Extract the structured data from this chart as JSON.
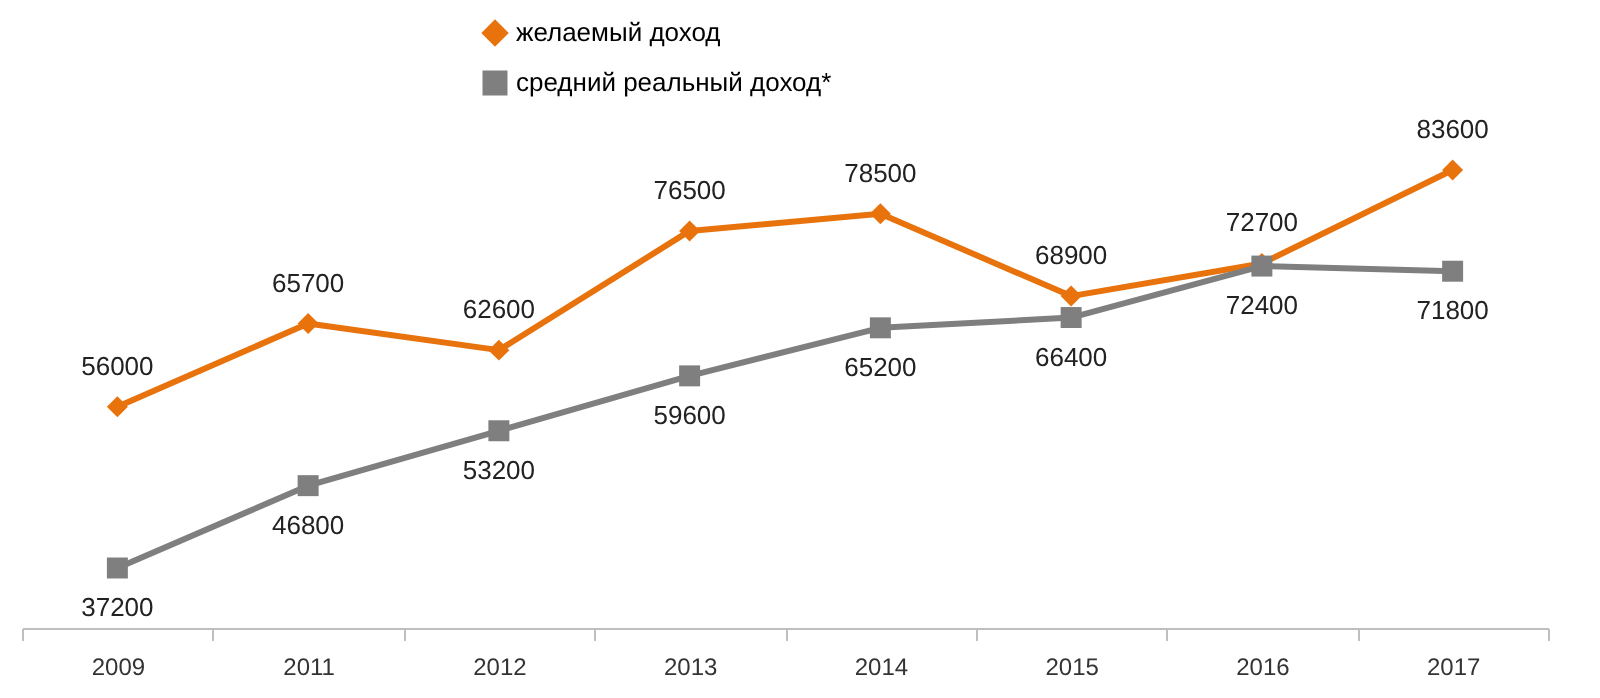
{
  "chart_data": {
    "type": "line",
    "categories": [
      "2009",
      "2011",
      "2012",
      "2013",
      "2014",
      "2015",
      "2016",
      "2017"
    ],
    "series": [
      {
        "name": "желаемый доход",
        "color": "#e8720c",
        "marker": "diamond",
        "values": [
          56000,
          65700,
          62600,
          76500,
          78500,
          68900,
          72700,
          83600
        ]
      },
      {
        "name": "средний реальный доход*",
        "color": "#7f7f7f",
        "marker": "square",
        "values": [
          37200,
          46800,
          53200,
          59600,
          65200,
          66400,
          72400,
          71800
        ]
      }
    ],
    "data_labels": true,
    "legend": "top",
    "grid": false,
    "tick_labels": "x"
  }
}
